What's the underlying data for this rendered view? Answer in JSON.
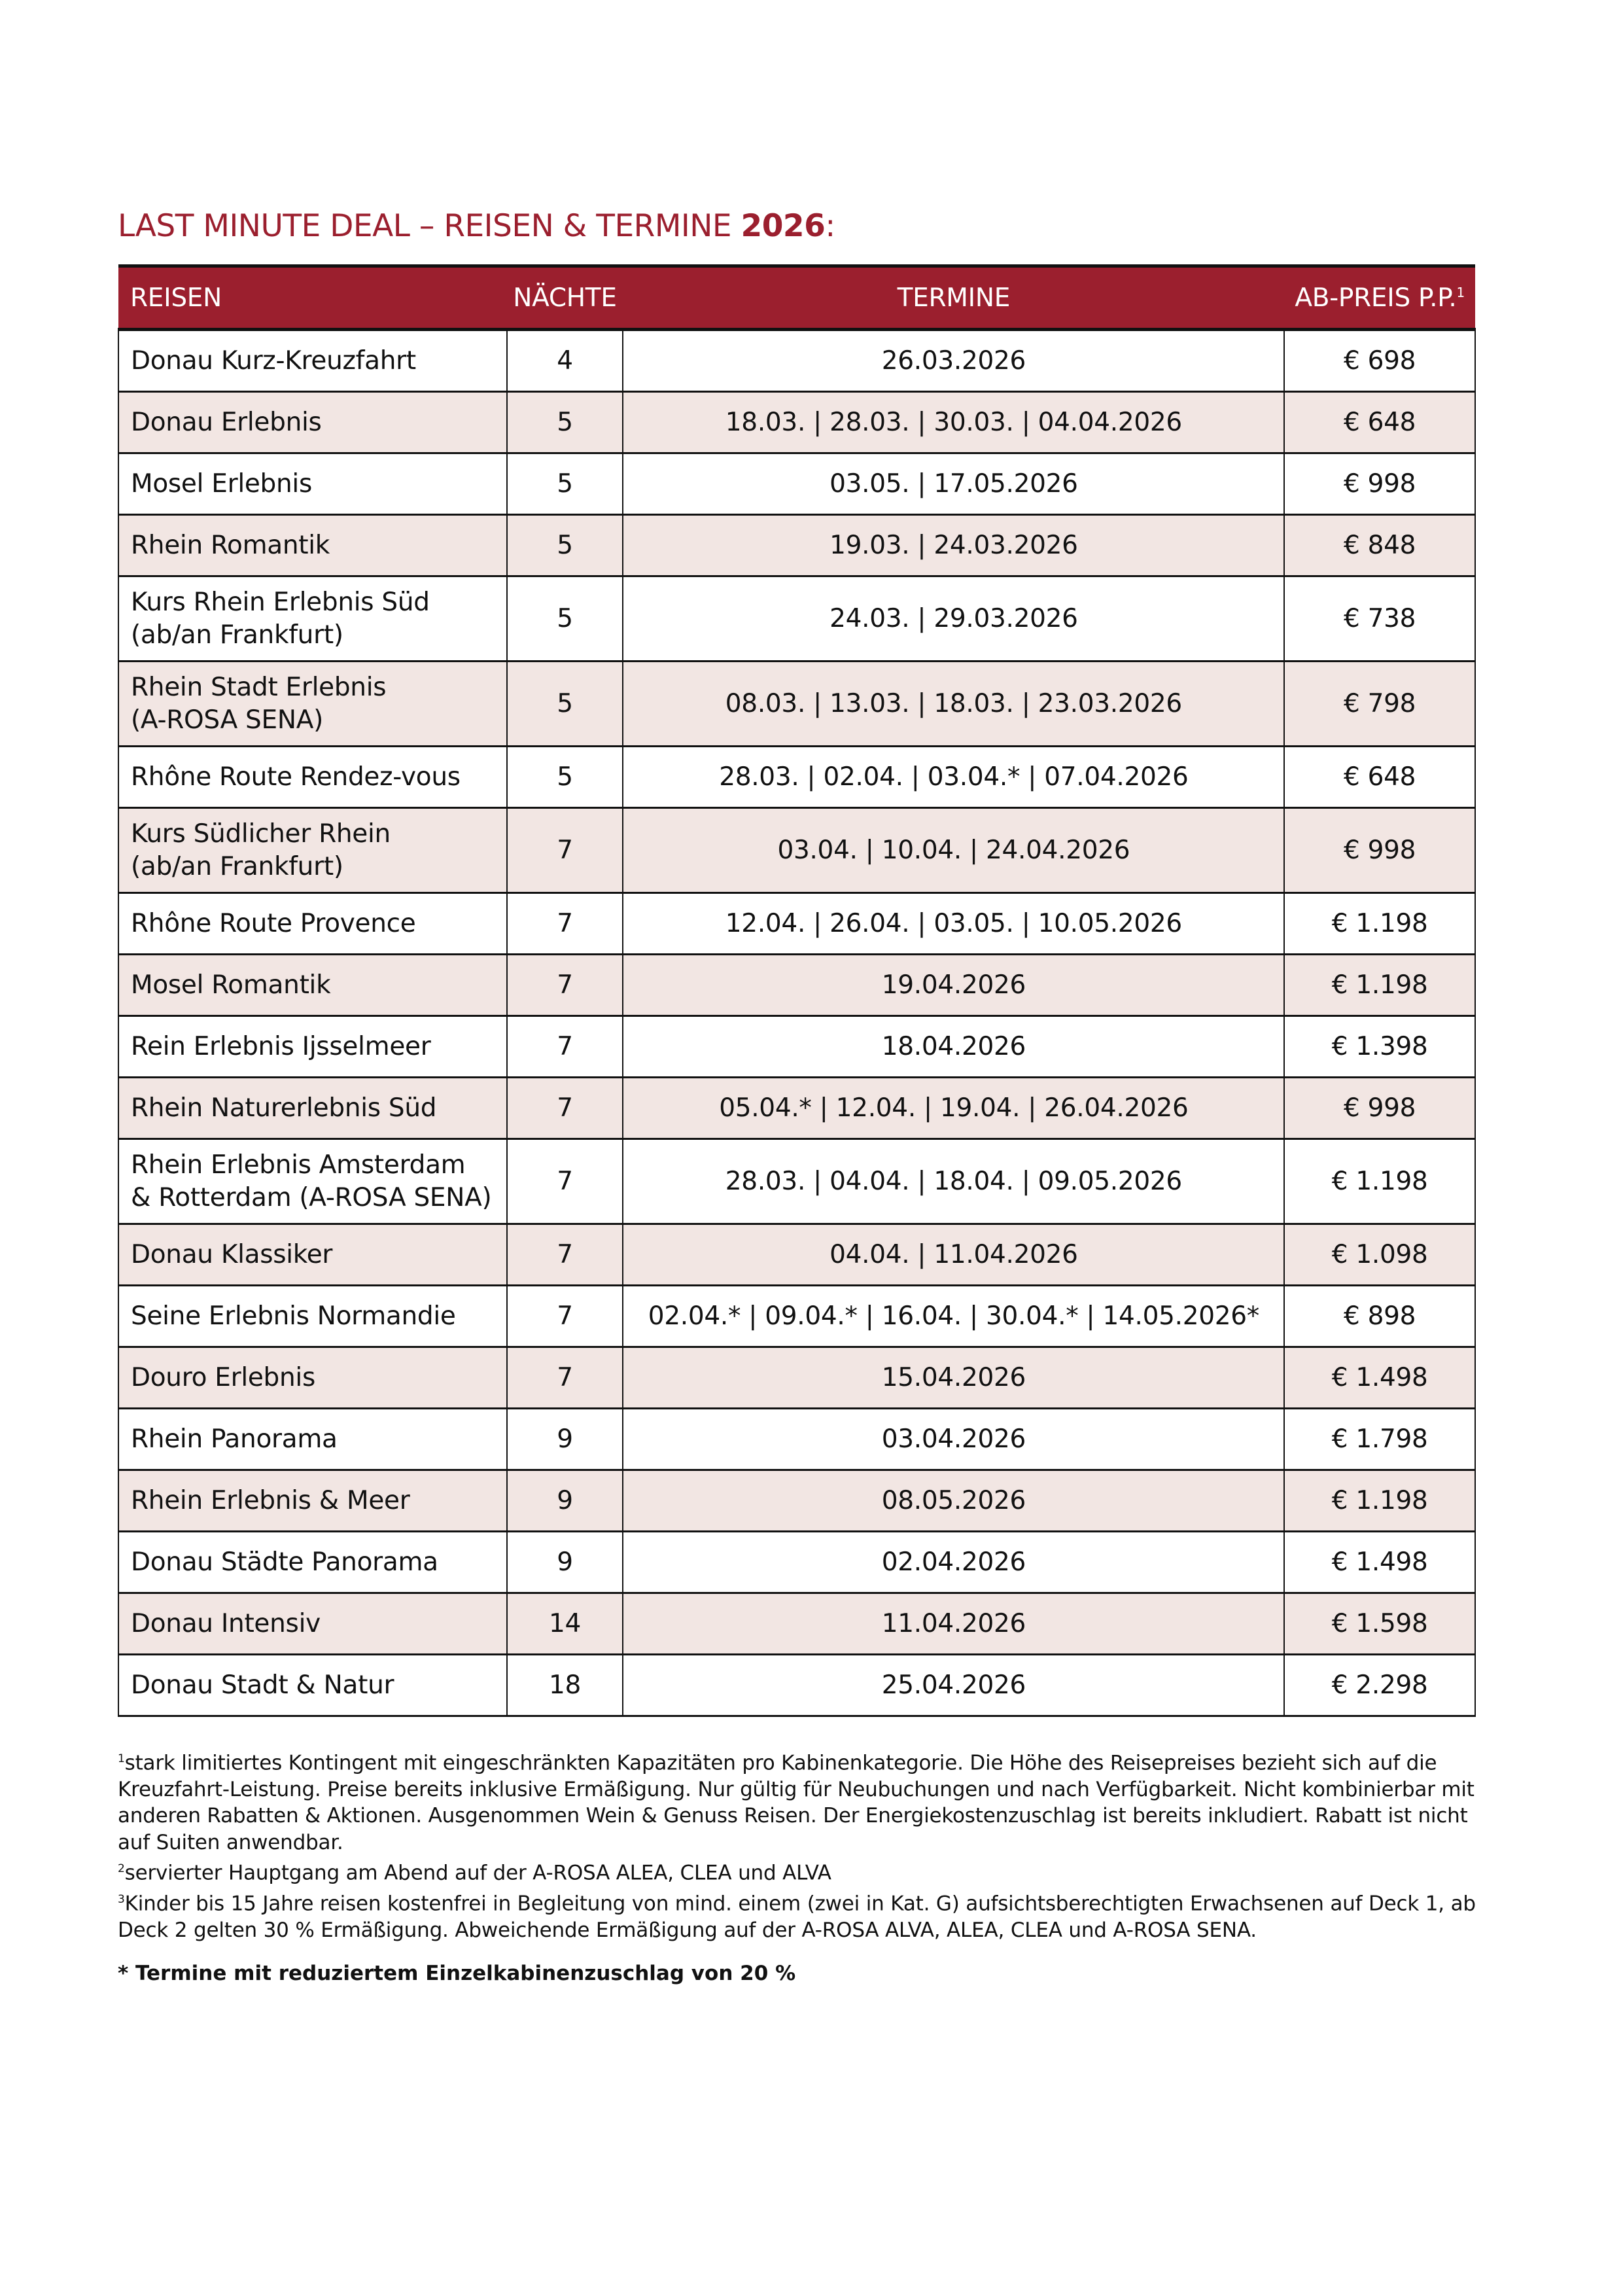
{
  "title": {
    "main": "LAST MINUTE DEAL – REISEN & TERMINE ",
    "year": "2026",
    ":": ":",
    "colon": ":"
  },
  "colors": {
    "accent": "#9b1f2e",
    "row_alt": "#f2e6e3"
  },
  "table": {
    "headers": {
      "reisen": "REISEN",
      "naechte": "NÄCHTE",
      "termine": "TERMINE",
      "preis": "AB-PREIS P.P.",
      "preis_sup": "1"
    },
    "rows": [
      {
        "reise": "Donau Kurz-Kreuzfahrt",
        "naechte": "4",
        "termine": "26.03.2026",
        "preis": "€ 698"
      },
      {
        "reise": "Donau Erlebnis",
        "naechte": "5",
        "termine": "18.03. | 28.03. | 30.03. | 04.04.2026",
        "preis": "€ 648"
      },
      {
        "reise": "Mosel Erlebnis",
        "naechte": "5",
        "termine": "03.05. | 17.05.2026",
        "preis": "€ 998"
      },
      {
        "reise": "Rhein Romantik",
        "naechte": "5",
        "termine": "19.03. | 24.03.2026",
        "preis": "€ 848"
      },
      {
        "reise": "Kurs Rhein Erlebnis Süd",
        "reise2": "(ab/an Frankfurt)",
        "naechte": "5",
        "termine": "24.03. | 29.03.2026",
        "preis": "€ 738"
      },
      {
        "reise": "Rhein Stadt Erlebnis",
        "reise2": "(A-ROSA SENA)",
        "naechte": "5",
        "termine": "08.03. | 13.03. | 18.03. | 23.03.2026",
        "preis": "€ 798"
      },
      {
        "reise": "Rhône Route Rendez-vous",
        "naechte": "5",
        "termine": "28.03. | 02.04. | 03.04.* | 07.04.2026",
        "preis": "€ 648"
      },
      {
        "reise": "Kurs Südlicher Rhein",
        "reise2": "(ab/an Frankfurt)",
        "naechte": "7",
        "termine": "03.04. | 10.04. | 24.04.2026",
        "preis": "€ 998"
      },
      {
        "reise": "Rhône Route Provence",
        "naechte": "7",
        "termine": "12.04. | 26.04. | 03.05. | 10.05.2026",
        "preis": "€ 1.198"
      },
      {
        "reise": "Mosel Romantik",
        "naechte": "7",
        "termine": "19.04.2026",
        "preis": "€ 1.198"
      },
      {
        "reise": "Rein Erlebnis Ijsselmeer",
        "naechte": "7",
        "termine": "18.04.2026",
        "preis": "€ 1.398"
      },
      {
        "reise": "Rhein Naturerlebnis Süd",
        "naechte": "7",
        "termine": "05.04.* | 12.04. | 19.04. | 26.04.2026",
        "preis": "€ 998"
      },
      {
        "reise": "Rhein Erlebnis Amsterdam",
        "reise2": "& Rotterdam (A-ROSA SENA)",
        "naechte": "7",
        "termine": "28.03. | 04.04. | 18.04. | 09.05.2026",
        "preis": "€ 1.198"
      },
      {
        "reise": "Donau Klassiker",
        "naechte": "7",
        "termine": "04.04. | 11.04.2026",
        "preis": "€ 1.098"
      },
      {
        "reise": "Seine Erlebnis Normandie",
        "naechte": "7",
        "termine": "02.04.* | 09.04.* | 16.04. | 30.04.* | 14.05.2026*",
        "preis": "€ 898"
      },
      {
        "reise": "Douro Erlebnis",
        "naechte": "7",
        "termine": "15.04.2026",
        "preis": "€ 1.498"
      },
      {
        "reise": "Rhein Panorama",
        "naechte": "9",
        "termine": "03.04.2026",
        "preis": "€ 1.798"
      },
      {
        "reise": "Rhein Erlebnis & Meer",
        "naechte": "9",
        "termine": "08.05.2026",
        "preis": "€ 1.198"
      },
      {
        "reise": "Donau Städte Panorama",
        "naechte": "9",
        "termine": "02.04.2026",
        "preis": "€ 1.498"
      },
      {
        "reise": "Donau Intensiv",
        "naechte": "14",
        "termine": "11.04.2026",
        "preis": "€ 1.598"
      },
      {
        "reise": "Donau Stadt & Natur",
        "naechte": "18",
        "termine": "25.04.2026",
        "preis": "€ 2.298"
      }
    ]
  },
  "footnotes": [
    {
      "sup": "1",
      "text": "stark limitiertes Kontingent mit eingeschränkten Kapazitäten pro Kabinenkategorie. Die Höhe des Reisepreises bezieht sich auf die Kreuzfahrt-Leistung. Preise bereits inklusive Ermäßigung. Nur gültig für Neubuchungen und nach Verfügbarkeit. Nicht kombinierbar mit anderen Rabatten & Aktionen. Ausgenommen Wein & Genuss Reisen. Der Energiekostenzuschlag ist bereits inkludiert. Rabatt ist nicht auf Suiten anwendbar."
    },
    {
      "sup": "2",
      "text": "servierter Hauptgang am Abend auf der A-ROSA ALEA, CLEA und ALVA"
    },
    {
      "sup": "3",
      "text": "Kinder bis 15 Jahre reisen kostenfrei in Begleitung von mind. einem (zwei in Kat. G) aufsichtsberechtigten Erwachsenen auf Deck 1, ab Deck 2 gelten 30 % Ermäßigung. Abweichende Ermäßigung auf der A-ROSA ALVA, ALEA, CLEA und A-ROSA SENA."
    }
  ],
  "note": "* Termine mit reduziertem Einzelkabinenzuschlag von 20 %"
}
